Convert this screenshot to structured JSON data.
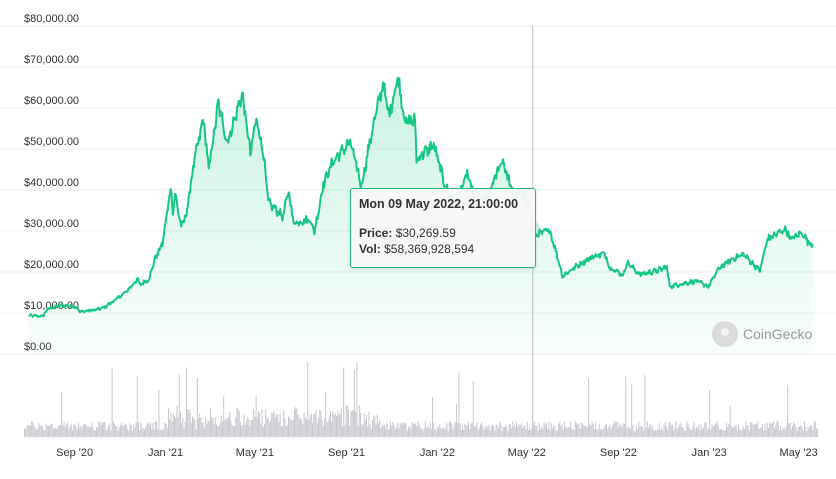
{
  "chart_data": {
    "type": "line",
    "price_series": {
      "color": "#16c784",
      "points": [
        [
          "2020-07-01",
          9400
        ],
        [
          "2020-07-20",
          9200
        ],
        [
          "2020-07-27",
          11000
        ],
        [
          "2020-08-15",
          11900
        ],
        [
          "2020-09-03",
          11500
        ],
        [
          "2020-09-08",
          10300
        ],
        [
          "2020-09-30",
          10800
        ],
        [
          "2020-10-10",
          11300
        ],
        [
          "2020-10-25",
          13100
        ],
        [
          "2020-11-10",
          15300
        ],
        [
          "2020-11-25",
          18400
        ],
        [
          "2020-11-27",
          16800
        ],
        [
          "2020-12-10",
          18300
        ],
        [
          "2020-12-17",
          22800
        ],
        [
          "2020-12-28",
          27000
        ],
        [
          "2021-01-08",
          40500
        ],
        [
          "2021-01-11",
          35000
        ],
        [
          "2021-01-14",
          39000
        ],
        [
          "2021-01-22",
          31000
        ],
        [
          "2021-01-29",
          34000
        ],
        [
          "2021-02-08",
          46500
        ],
        [
          "2021-02-21",
          57500
        ],
        [
          "2021-02-28",
          45000
        ],
        [
          "2021-03-13",
          61200
        ],
        [
          "2021-03-25",
          51500
        ],
        [
          "2021-04-14",
          63500
        ],
        [
          "2021-04-25",
          49000
        ],
        [
          "2021-05-03",
          57500
        ],
        [
          "2021-05-12",
          49500
        ],
        [
          "2021-05-19",
          37000
        ],
        [
          "2021-06-08",
          33500
        ],
        [
          "2021-06-15",
          40000
        ],
        [
          "2021-06-22",
          32000
        ],
        [
          "2021-07-14",
          32800
        ],
        [
          "2021-07-20",
          29800
        ],
        [
          "2021-08-01",
          41500
        ],
        [
          "2021-08-14",
          47000
        ],
        [
          "2021-09-06",
          51700
        ],
        [
          "2021-09-21",
          41000
        ],
        [
          "2021-10-06",
          55000
        ],
        [
          "2021-10-20",
          66000
        ],
        [
          "2021-10-28",
          58000
        ],
        [
          "2021-11-09",
          67500
        ],
        [
          "2021-11-19",
          56500
        ],
        [
          "2021-12-02",
          57000
        ],
        [
          "2021-12-04",
          47500
        ],
        [
          "2021-12-27",
          51000
        ],
        [
          "2022-01-10",
          42000
        ],
        [
          "2022-01-24",
          36000
        ],
        [
          "2022-02-10",
          44000
        ],
        [
          "2022-02-24",
          35000
        ],
        [
          "2022-03-10",
          38500
        ],
        [
          "2022-03-29",
          47500
        ],
        [
          "2022-04-11",
          40000
        ],
        [
          "2022-04-30",
          38000
        ],
        [
          "2022-05-05",
          36500
        ],
        [
          "2022-05-09",
          30269.59
        ],
        [
          "2022-05-12",
          29000
        ],
        [
          "2022-06-01",
          30200
        ],
        [
          "2022-06-13",
          22500
        ],
        [
          "2022-06-18",
          19000
        ],
        [
          "2022-07-08",
          21600
        ],
        [
          "2022-07-29",
          23800
        ],
        [
          "2022-08-14",
          24500
        ],
        [
          "2022-08-20",
          21200
        ],
        [
          "2022-09-08",
          19200
        ],
        [
          "2022-09-12",
          22400
        ],
        [
          "2022-09-30",
          19400
        ],
        [
          "2022-10-25",
          20400
        ],
        [
          "2022-11-05",
          21300
        ],
        [
          "2022-11-09",
          16500
        ],
        [
          "2022-12-14",
          17800
        ],
        [
          "2022-12-31",
          16500
        ],
        [
          "2023-01-14",
          20900
        ],
        [
          "2023-01-31",
          23100
        ],
        [
          "2023-02-16",
          24300
        ],
        [
          "2023-03-10",
          20300
        ],
        [
          "2023-03-20",
          28000
        ],
        [
          "2023-04-14",
          30500
        ],
        [
          "2023-04-20",
          28000
        ],
        [
          "2023-05-06",
          29500
        ],
        [
          "2023-05-15",
          27000
        ],
        [
          "2023-05-20",
          26800
        ]
      ]
    },
    "volume_series": {
      "color": "#c9c9cf"
    },
    "y_axis": {
      "ticks": [
        0,
        10000,
        20000,
        30000,
        40000,
        50000,
        60000,
        70000,
        80000
      ],
      "tick_labels": [
        "$0.00",
        "$10,000.00",
        "$20,000.00",
        "$30,000.00",
        "$40,000.00",
        "$50,000.00",
        "$60,000.00",
        "$70,000.00",
        "$80,000.00"
      ],
      "range": [
        0,
        80000
      ]
    },
    "x_axis": {
      "range": [
        "2020-06-25",
        "2023-05-27"
      ],
      "ticks": [
        {
          "date": "2020-09-01",
          "label": "Sep '20"
        },
        {
          "date": "2021-01-01",
          "label": "Jan '21"
        },
        {
          "date": "2021-05-01",
          "label": "May '21"
        },
        {
          "date": "2021-09-01",
          "label": "Sep '21"
        },
        {
          "date": "2022-01-01",
          "label": "Jan '22"
        },
        {
          "date": "2022-05-01",
          "label": "May '22"
        },
        {
          "date": "2022-09-01",
          "label": "Sep '22"
        },
        {
          "date": "2023-01-01",
          "label": "Jan '23"
        },
        {
          "date": "2023-05-01",
          "label": "May '23"
        }
      ]
    },
    "grid": true,
    "legend": "none"
  },
  "tooltip": {
    "date": "2022-05-09",
    "title": "Mon 09 May 2022, 21:00:00",
    "price_label": "Price:",
    "price_value": "$30,269.59",
    "vol_label": "Vol:",
    "vol_value": "$58,369,928,594"
  },
  "watermark": {
    "text": "CoinGecko",
    "icon": "coingecko-logo-icon"
  }
}
